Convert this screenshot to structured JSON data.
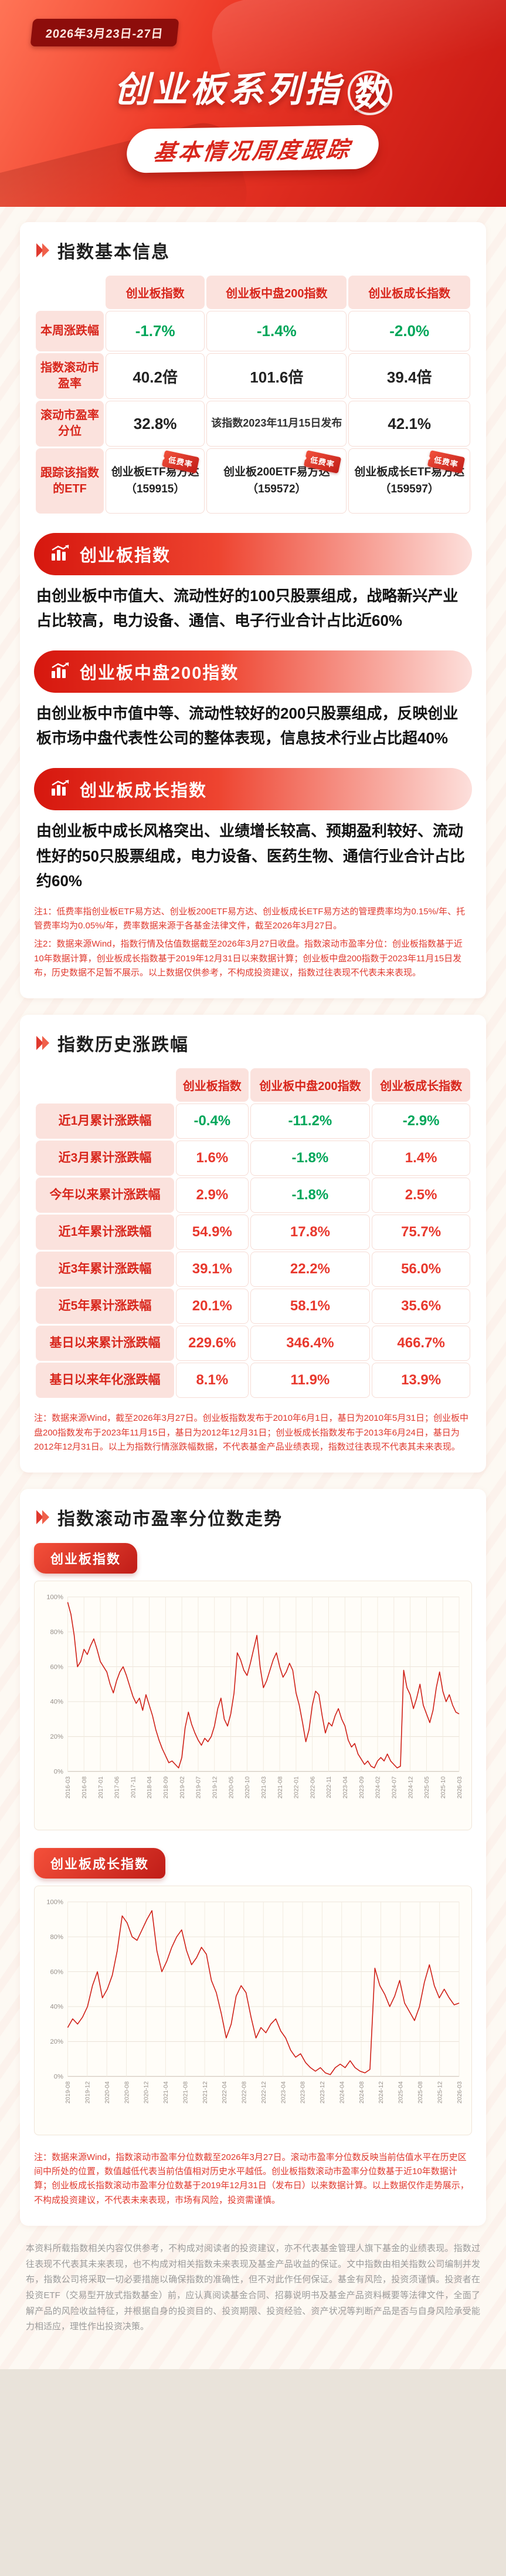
{
  "header": {
    "date_range": "2026年3月23日-27日",
    "title_line1_pre": "创业板系列指",
    "title_line1_circled": "数",
    "title_line2": "基本情况周度跟踪"
  },
  "sections": {
    "basic_info": {
      "title": "指数基本信息"
    },
    "history": {
      "title": "指数历史涨跌幅"
    },
    "pe_trend": {
      "title": "指数滚动市盈率分位数走势"
    }
  },
  "basic_table": {
    "columns": [
      "创业板指数",
      "创业板中盘200指数",
      "创业板成长指数"
    ],
    "rows": [
      {
        "label": "本周涨跌幅",
        "values": [
          "-1.7%",
          "-1.4%",
          "-2.0%"
        ]
      },
      {
        "label": "指数滚动市盈率",
        "values": [
          "40.2倍",
          "101.6倍",
          "39.4倍"
        ]
      },
      {
        "label": "滚动市盈率分位",
        "values": [
          "32.8%",
          "该指数2023年11月15日发布",
          "42.1%"
        ]
      }
    ],
    "etf_row": {
      "label": "跟踪该指数的ETF",
      "badge": "低费率",
      "items": [
        {
          "name": "创业板ETF易方达",
          "code": "（159915）"
        },
        {
          "name": "创业板200ETF易方达",
          "code": "（159572）"
        },
        {
          "name": "创业板成长ETF易方达",
          "code": "（159597）"
        }
      ]
    }
  },
  "banners": [
    {
      "title": "创业板指数",
      "desc": "由创业板中市值大、流动性好的100只股票组成，战略新兴产业占比较高，电力设备、通信、电子行业合计占比近60%"
    },
    {
      "title": "创业板中盘200指数",
      "desc": "由创业板中市值中等、流动性较好的200只股票组成，反映创业板市场中盘代表性公司的整体表现，信息技术行业占比超40%"
    },
    {
      "title": "创业板成长指数",
      "desc": "由创业板中成长风格突出、业绩增长较高、预期盈利较好、流动性好的50只股票组成，电力设备、医药生物、通信行业合计占比约60%"
    }
  ],
  "notes_basic": {
    "lines": [
      "注1：低费率指创业板ETF易方达、创业板200ETF易方达、创业板成长ETF易方达的管理费率均为0.15%/年、托管费率均为0.05%/年，费率数据来源于各基金法律文件，截至2026年3月27日。",
      "注2：数据来源Wind，指数行情及估值数据截至2026年3月27日收盘。指数滚动市盈率分位：创业板指数基于近10年数据计算，创业板成长指数基于2019年12月31日以来数据计算；创业板中盘200指数于2023年11月15日发布，历史数据不足暂不展示。以上数据仅供参考，不构成投资建议，指数过往表现不代表未来表现。"
    ]
  },
  "history_table": {
    "columns": [
      "创业板指数",
      "创业板中盘200指数",
      "创业板成长指数"
    ],
    "rows": [
      {
        "label": "近1月累计涨跌幅",
        "values": [
          "-0.4%",
          "-11.2%",
          "-2.9%"
        ]
      },
      {
        "label": "近3月累计涨跌幅",
        "values": [
          "1.6%",
          "-1.8%",
          "1.4%"
        ]
      },
      {
        "label": "今年以来累计涨跌幅",
        "values": [
          "2.9%",
          "-1.8%",
          "2.5%"
        ]
      },
      {
        "label": "近1年累计涨跌幅",
        "values": [
          "54.9%",
          "17.8%",
          "75.7%"
        ]
      },
      {
        "label": "近3年累计涨跌幅",
        "values": [
          "39.1%",
          "22.2%",
          "56.0%"
        ]
      },
      {
        "label": "近5年累计涨跌幅",
        "values": [
          "20.1%",
          "58.1%",
          "35.6%"
        ]
      },
      {
        "label": "基日以来累计涨跌幅",
        "values": [
          "229.6%",
          "346.4%",
          "466.7%"
        ]
      },
      {
        "label": "基日以来年化涨跌幅",
        "values": [
          "8.1%",
          "11.9%",
          "13.9%"
        ]
      }
    ]
  },
  "notes_history": {
    "lines": [
      "注：数据来源Wind，截至2026年3月27日。创业板指数发布于2010年6月1日，基日为2010年5月31日；创业板中盘200指数发布于2023年11月15日，基日为2012年12月31日；创业板成长指数发布于2013年6月24日，基日为2012年12月31日。以上为指数行情涨跌幅数据，不代表基金产品业绩表现，指数过往表现不代表其未来表现。"
    ]
  },
  "notes_chart": {
    "lines": [
      "注：数据来源Wind，指数滚动市盈率分位数截至2026年3月27日。滚动市盈率分位数反映当前估值水平在历史区间中所处的位置，数值越低代表当前估值相对历史水平越低。创业板指数滚动市盈率分位数基于近10年数据计算；创业板成长指数滚动市盈率分位数基于2019年12月31日（发布日）以来数据计算。以上数据仅作走势展示，不构成投资建议，不代表未来表现，市场有风险，投资需谨慎。"
    ]
  },
  "footer": {
    "text": "本资料所载指数相关内容仅供参考，不构成对阅读者的投资建议，亦不代表基金管理人旗下基金的业绩表现。指数过往表现不代表其未来表现，也不构成对相关指数未来表现及基金产品收益的保证。文中指数由相关指数公司编制并发布，指数公司将采取一切必要措施以确保指数的准确性，但不对此作任何保证。基金有风险，投资须谨慎。投资者在投资ETF（交易型开放式指数基金）前，应认真阅读基金合同、招募说明书及基金产品资料概要等法律文件，全面了解产品的风险收益特征，并根据自身的投资目的、投资期限、投资经验、资产状况等判断产品是否与自身风险承受能力相适应，理性作出投资决策。"
  },
  "chart_data": [
    {
      "type": "line",
      "name": "创业板指数",
      "title": "创业板指数滚动市盈率分位数走势",
      "ylabel": "滚动市盈率分位数",
      "ylim": [
        0,
        100
      ],
      "grid": true,
      "color": "#cf1f16",
      "yticks": [
        "0%",
        "20%",
        "40%",
        "60%",
        "80%",
        "100%"
      ],
      "x_labels": [
        "2016-03",
        "2016-08",
        "2017-01",
        "2017-06",
        "2017-11",
        "2018-04",
        "2018-09",
        "2019-02",
        "2019-07",
        "2019-12",
        "2020-05",
        "2020-10",
        "2021-03",
        "2021-08",
        "2022-01",
        "2022-06",
        "2022-11",
        "2023-04",
        "2023-09",
        "2024-02",
        "2024-07",
        "2024-12",
        "2025-05",
        "2025-10",
        "2026-03"
      ],
      "values": [
        97,
        90,
        78,
        60,
        63,
        70,
        67,
        72,
        76,
        70,
        63,
        60,
        57,
        50,
        45,
        52,
        57,
        60,
        55,
        49,
        43,
        39,
        42,
        35,
        44,
        38,
        32,
        24,
        18,
        13,
        9,
        5,
        6,
        4,
        2,
        8,
        25,
        34,
        27,
        22,
        18,
        15,
        19,
        17,
        20,
        26,
        36,
        42,
        30,
        26,
        33,
        45,
        68,
        64,
        58,
        55,
        62,
        70,
        78,
        60,
        48,
        52,
        58,
        64,
        68,
        60,
        54,
        57,
        62,
        58,
        45,
        38,
        28,
        17,
        24,
        38,
        46,
        44,
        32,
        22,
        28,
        26,
        32,
        36,
        30,
        26,
        18,
        14,
        16,
        10,
        7,
        4,
        6,
        3,
        2,
        6,
        8,
        6,
        10,
        6,
        4,
        2,
        3,
        58,
        48,
        44,
        36,
        42,
        50,
        38,
        33,
        28,
        35,
        48,
        57,
        46,
        40,
        44,
        38,
        34,
        33
      ]
    },
    {
      "type": "line",
      "name": "创业板成长指数",
      "title": "创业板成长指数滚动市盈率分位数走势",
      "ylabel": "滚动市盈率分位数",
      "ylim": [
        0,
        100
      ],
      "grid": true,
      "color": "#cf1f16",
      "yticks": [
        "0%",
        "20%",
        "40%",
        "60%",
        "80%",
        "100%"
      ],
      "x_labels": [
        "2019-08",
        "2019-12",
        "2020-04",
        "2020-08",
        "2020-12",
        "2021-04",
        "2021-08",
        "2021-12",
        "2022-04",
        "2022-08",
        "2022-12",
        "2023-04",
        "2023-08",
        "2023-12",
        "2024-04",
        "2024-08",
        "2024-12",
        "2025-04",
        "2025-08",
        "2025-12",
        "2026-03"
      ],
      "values": [
        28,
        33,
        30,
        34,
        40,
        52,
        60,
        45,
        50,
        58,
        72,
        92,
        88,
        80,
        78,
        84,
        90,
        95,
        72,
        60,
        66,
        74,
        80,
        84,
        72,
        64,
        68,
        74,
        70,
        55,
        48,
        36,
        22,
        30,
        46,
        52,
        48,
        34,
        22,
        28,
        25,
        30,
        33,
        26,
        22,
        15,
        11,
        13,
        8,
        5,
        3,
        5,
        2,
        1,
        5,
        7,
        5,
        9,
        5,
        3,
        2,
        4,
        62,
        52,
        47,
        40,
        46,
        55,
        42,
        37,
        32,
        40,
        54,
        64,
        52,
        45,
        50,
        45,
        41,
        42
      ]
    }
  ]
}
